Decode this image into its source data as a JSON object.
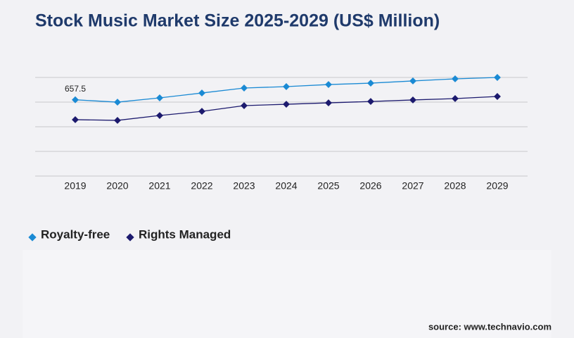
{
  "chart_data": {
    "type": "line",
    "title": "Stock Music Market Size 2025-2029 (US$ Million)",
    "categories": [
      "2019",
      "2020",
      "2021",
      "2022",
      "2023",
      "2024",
      "2025",
      "2026",
      "2027",
      "2028",
      "2029"
    ],
    "series": [
      {
        "name": "Royalty-free",
        "color": "#1a8ad4",
        "values": [
          657.5,
          637,
          674,
          716,
          759,
          771,
          789,
          801,
          820,
          838,
          850
        ]
      },
      {
        "name": "Rights Managed",
        "color": "#1c1a6e",
        "values": [
          486,
          480,
          522,
          558,
          607,
          619,
          631,
          643,
          656,
          668,
          686
        ]
      }
    ],
    "ylim": [
      0,
      850
    ],
    "yticks": [
      0,
      212.5,
      425,
      637.5,
      850
    ],
    "grid": true,
    "source": "source: www.technavio.com"
  }
}
